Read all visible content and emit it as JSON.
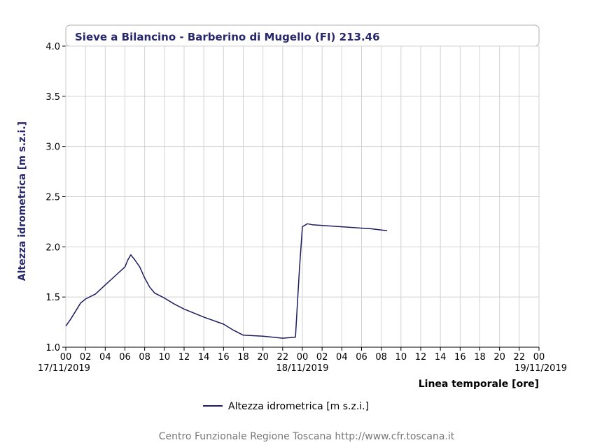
{
  "chart_data": {
    "type": "line",
    "title": "Sieve a Bilancino - Barberino di Mugello (FI) 213.46",
    "ylabel": "Altezza idrometrica [m s.z.i.]",
    "xlabel": "Linea temporale [ore]",
    "ylim": [
      1.0,
      4.0
    ],
    "yticks": [
      "1.0",
      "1.5",
      "2.0",
      "2.5",
      "3.0",
      "3.5",
      "4.0"
    ],
    "xlim_hours": [
      0,
      48
    ],
    "xtick_labels": [
      "00",
      "02",
      "04",
      "06",
      "08",
      "10",
      "12",
      "14",
      "16",
      "18",
      "20",
      "22",
      "00",
      "02",
      "04",
      "06",
      "08",
      "10",
      "12",
      "14",
      "16",
      "18",
      "20",
      "22",
      "00"
    ],
    "date_labels": [
      {
        "hour": 0,
        "text": "17/11/2019"
      },
      {
        "hour": 24,
        "text": "18/11/2019"
      },
      {
        "hour": 48,
        "text": "19/11/2019"
      }
    ],
    "grid": true,
    "legend_position": "bottom",
    "series": [
      {
        "name": "Altezza idrometrica [m s.z.i.]",
        "color": "#1c1c5e",
        "x_hours": [
          0,
          0.5,
          1,
          1.5,
          2,
          3,
          4,
          5,
          6,
          6.3,
          6.6,
          7,
          7.5,
          8,
          8.5,
          9,
          10,
          11,
          12,
          14,
          16,
          17,
          18,
          20,
          22,
          23.3,
          23.5,
          23.7,
          24,
          24.5,
          25,
          28,
          31,
          32.6
        ],
        "y": [
          1.21,
          1.28,
          1.36,
          1.44,
          1.48,
          1.53,
          1.62,
          1.71,
          1.8,
          1.87,
          1.92,
          1.87,
          1.8,
          1.69,
          1.6,
          1.54,
          1.49,
          1.43,
          1.38,
          1.3,
          1.23,
          1.17,
          1.12,
          1.11,
          1.09,
          1.1,
          1.45,
          1.78,
          2.2,
          2.23,
          2.22,
          2.2,
          2.18,
          2.16
        ]
      }
    ]
  },
  "footer": "Centro Funzionale Regione Toscana http://www.cfr.toscana.it"
}
